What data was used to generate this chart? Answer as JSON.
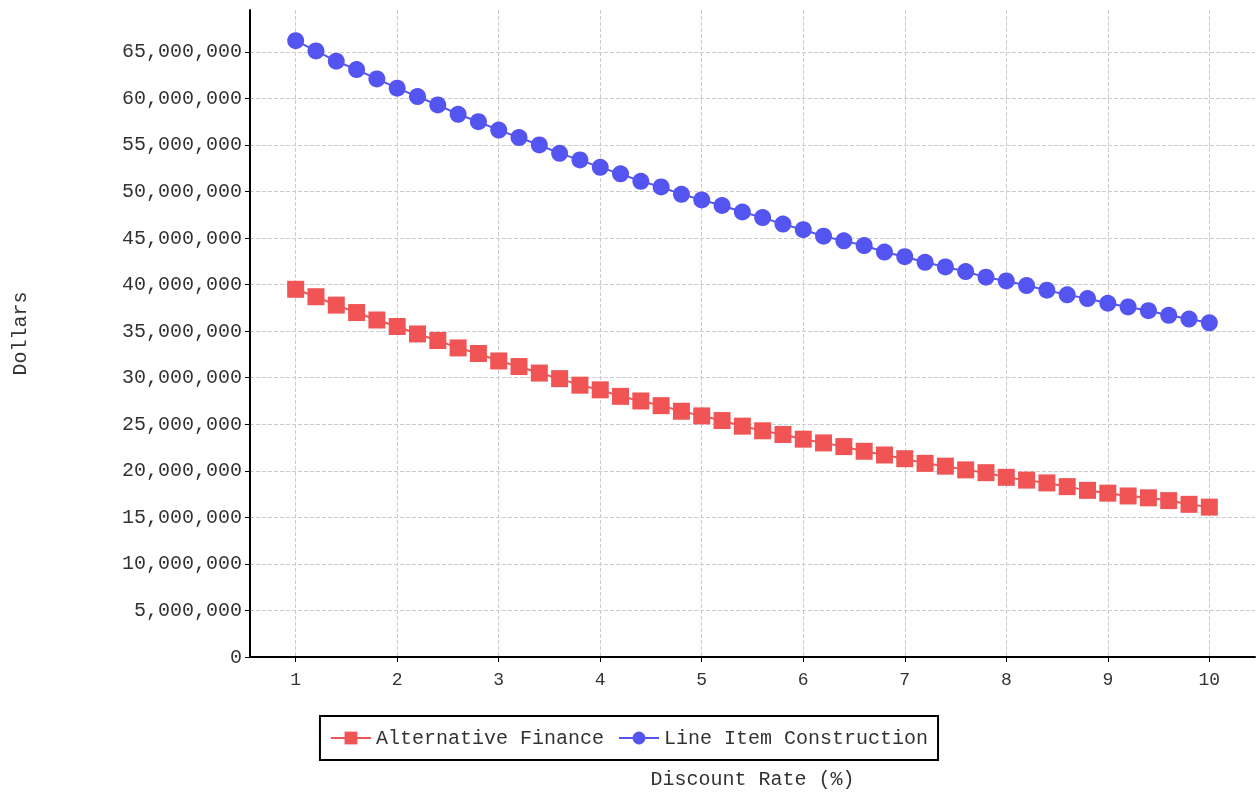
{
  "chart_data": {
    "type": "line",
    "xlabel": "Discount Rate (%)",
    "ylabel": "Dollars",
    "x": [
      1,
      1.2,
      1.4,
      1.6,
      1.8,
      2,
      2.2,
      2.4,
      2.6,
      2.8,
      3,
      3.2,
      3.4,
      3.6,
      3.8,
      4,
      4.2,
      4.4,
      4.6,
      4.8,
      5,
      5.2,
      5.4,
      5.6,
      5.8,
      6,
      6.2,
      6.4,
      6.6,
      6.8,
      7,
      7.2,
      7.4,
      7.6,
      7.8,
      8,
      8.2,
      8.4,
      8.6,
      8.8,
      9,
      9.2,
      9.4,
      9.6,
      9.8,
      10
    ],
    "series": [
      {
        "name": "Alternative Finance",
        "color": "#f05454",
        "marker": "square",
        "values": [
          39500000,
          38700000,
          37800000,
          37000000,
          36200000,
          35500000,
          34700000,
          34000000,
          33200000,
          32600000,
          31800000,
          31200000,
          30500000,
          29900000,
          29200000,
          28700000,
          28000000,
          27500000,
          27000000,
          26400000,
          25900000,
          25400000,
          24800000,
          24300000,
          23900000,
          23400000,
          23000000,
          22600000,
          22100000,
          21700000,
          21300000,
          20800000,
          20500000,
          20100000,
          19800000,
          19300000,
          19000000,
          18700000,
          18300000,
          17900000,
          17600000,
          17300000,
          17100000,
          16800000,
          16400000,
          16100000
        ]
      },
      {
        "name": "Line Item Construction",
        "color": "#5454f0",
        "marker": "circle",
        "values": [
          66200000,
          65100000,
          64000000,
          63100000,
          62100000,
          61100000,
          60200000,
          59300000,
          58300000,
          57500000,
          56600000,
          55800000,
          55000000,
          54100000,
          53400000,
          52600000,
          51900000,
          51100000,
          50500000,
          49700000,
          49100000,
          48500000,
          47800000,
          47200000,
          46500000,
          45900000,
          45200000,
          44700000,
          44200000,
          43500000,
          43000000,
          42400000,
          41900000,
          41400000,
          40800000,
          40400000,
          39900000,
          39400000,
          38900000,
          38500000,
          38000000,
          37600000,
          37200000,
          36700000,
          36300000,
          35900000
        ]
      }
    ],
    "xlim": [
      0.55,
      10.45
    ],
    "xticks": [
      1,
      2,
      3,
      4,
      5,
      6,
      7,
      8,
      9,
      10
    ],
    "ylim": [
      0,
      69500000
    ],
    "yticks": [
      0,
      {
        "value": 5000000,
        "label": "5,000,000"
      },
      {
        "value": 10000000,
        "label": "10,000,000"
      },
      {
        "value": 15000000,
        "label": "15,000,000"
      },
      {
        "value": 20000000,
        "label": "20,000,000"
      },
      {
        "value": 25000000,
        "label": "25,000,000"
      },
      {
        "value": 30000000,
        "label": "30,000,000"
      },
      {
        "value": 35000000,
        "label": "35,000,000"
      },
      {
        "value": 40000000,
        "label": "40,000,000"
      },
      {
        "value": 45000000,
        "label": "45,000,000"
      },
      {
        "value": 50000000,
        "label": "50,000,000"
      },
      {
        "value": 55000000,
        "label": "55,000,000"
      },
      {
        "value": 60000000,
        "label": "60,000,000"
      },
      {
        "value": 65000000,
        "label": "65,000,000"
      }
    ],
    "grid": true,
    "legend": "bottom",
    "line_style": "solid"
  }
}
